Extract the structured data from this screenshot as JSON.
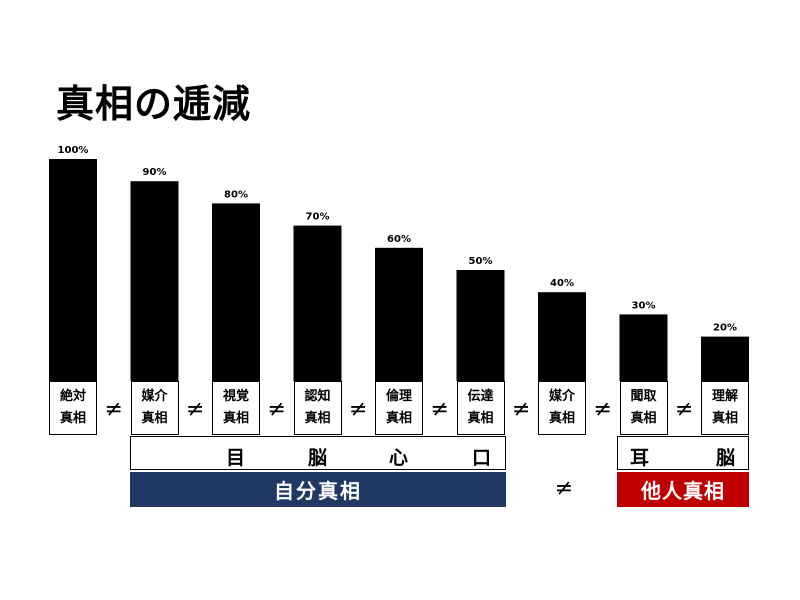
{
  "title": "真相の逓減",
  "chart_data": {
    "type": "bar",
    "categories": [
      [
        "絶対",
        "真相"
      ],
      [
        "媒介",
        "真相"
      ],
      [
        "視覚",
        "真相"
      ],
      [
        "認知",
        "真相"
      ],
      [
        "倫理",
        "真相"
      ],
      [
        "伝達",
        "真相"
      ],
      [
        "媒介",
        "真相"
      ],
      [
        "聞取",
        "真相"
      ],
      [
        "理解",
        "真相"
      ]
    ],
    "values": [
      100,
      90,
      80,
      70,
      60,
      50,
      40,
      30,
      20
    ],
    "value_labels": [
      "100%",
      "90%",
      "80%",
      "70%",
      "60%",
      "50%",
      "40%",
      "30%",
      "20%"
    ],
    "ylim": [
      0,
      100
    ],
    "bar_color": "#000000",
    "grid": false,
    "legend": "none"
  },
  "separator": "≠",
  "groups": {
    "organs": [
      "目",
      "脳",
      "心",
      "口"
    ],
    "ear_brain": [
      "耳",
      "脳"
    ],
    "self": "自分真相",
    "other": "他人真相",
    "self_color": "#203864",
    "other_color": "#c00000"
  }
}
